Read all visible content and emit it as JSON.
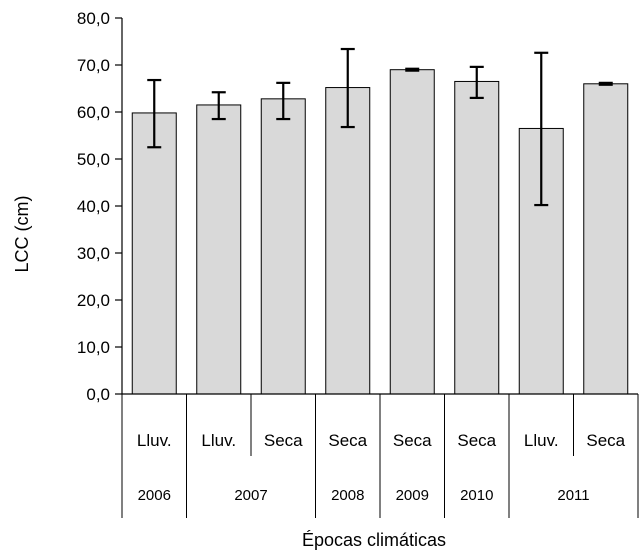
{
  "chart_data": {
    "type": "bar",
    "ylabel": "LCC (cm)",
    "xlabel": "Épocas climáticas",
    "ylim": [
      0,
      80
    ],
    "ytick_step": 10,
    "ytick_labels": [
      "0,0",
      "10,0",
      "20,0",
      "30,0",
      "40,0",
      "50,0",
      "60,0",
      "70,0",
      "80,0"
    ],
    "grid": false,
    "categories": [
      "Lluv.",
      "Lluv.",
      "Seca",
      "Seca",
      "Seca",
      "Seca",
      "Lluv.",
      "Seca"
    ],
    "years": [
      {
        "label": "2006",
        "count": 1
      },
      {
        "label": "2007",
        "count": 2
      },
      {
        "label": "2008",
        "count": 1
      },
      {
        "label": "2009",
        "count": 1
      },
      {
        "label": "2010",
        "count": 1
      },
      {
        "label": "2011",
        "count": 2
      }
    ],
    "values": [
      59.8,
      61.5,
      62.8,
      65.2,
      69.0,
      66.5,
      56.5,
      66.0
    ],
    "error_low": [
      52.5,
      58.5,
      58.5,
      56.8,
      68.8,
      63.0,
      40.2,
      65.8
    ],
    "error_high": [
      66.8,
      64.2,
      66.2,
      73.4,
      69.2,
      69.6,
      72.6,
      66.2
    ],
    "bar_color": "#d9d9d9",
    "bar_edge_color": "#000000"
  }
}
